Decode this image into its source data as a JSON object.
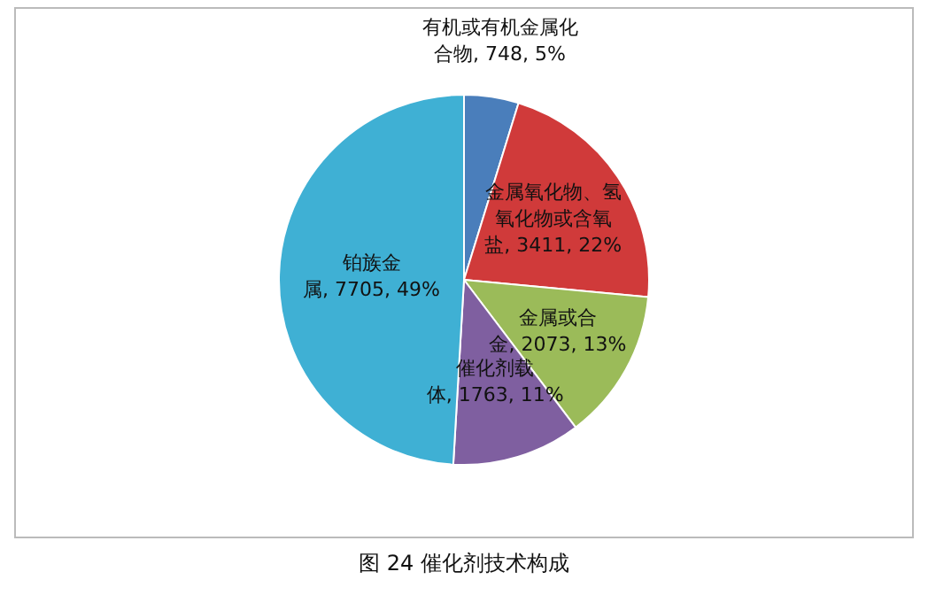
{
  "chart_data": {
    "type": "pie",
    "title": "图 24 催化剂技术构成",
    "categories": [
      "有机或有机金属化合物",
      "金属氧化物、氢氧化物或含氧盐",
      "金属或合金",
      "催化剂载体",
      "铂族金属"
    ],
    "values": [
      748,
      3411,
      2073,
      1763,
      7705
    ],
    "value_labels": [
      "748, 5%",
      "3411, 22%",
      "2073, 13%",
      "1763, 11%",
      "7705, 49%"
    ],
    "colors": [
      "#4a7ebb",
      "#d03a3a",
      "#9bbb59",
      "#7f5fa0",
      "#3fb0d4"
    ],
    "legend": false
  }
}
